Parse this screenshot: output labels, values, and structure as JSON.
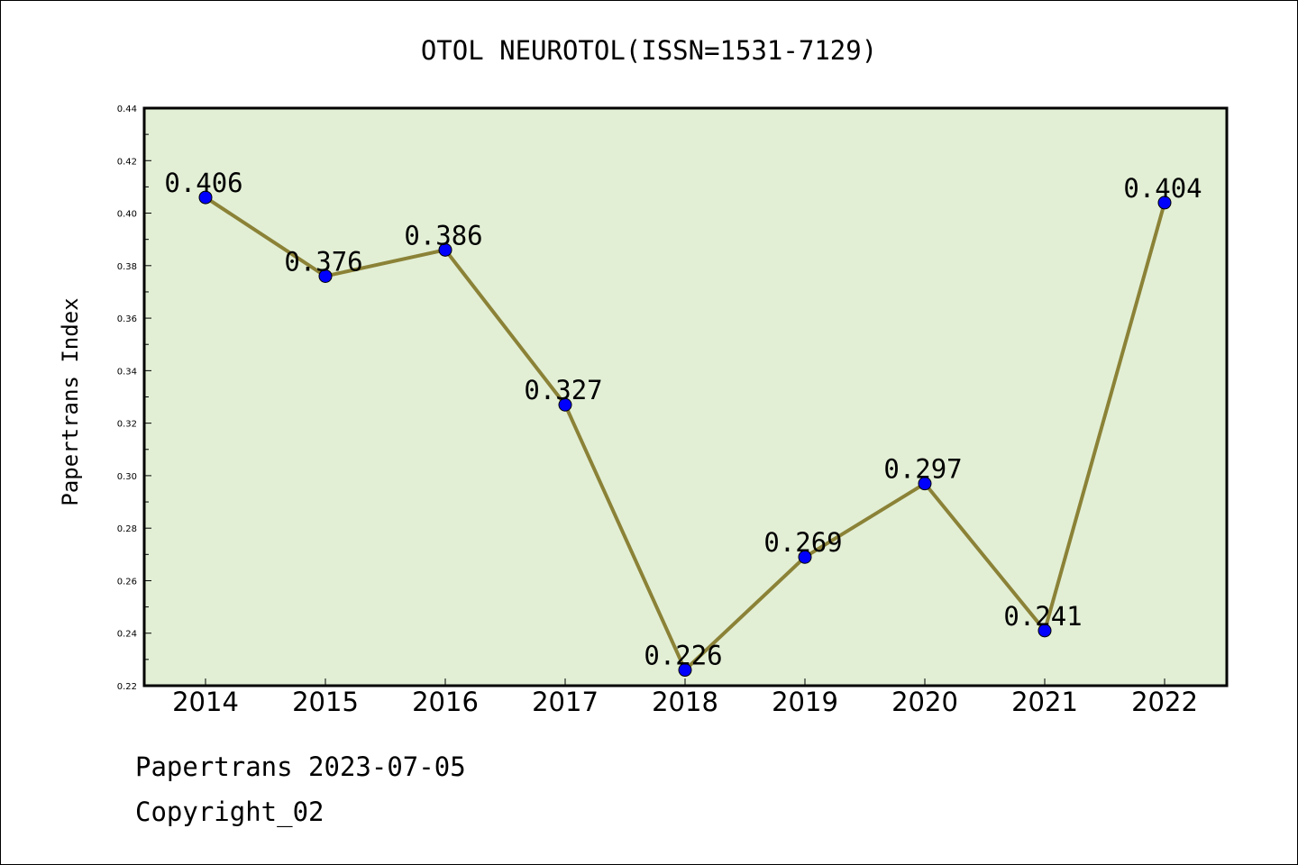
{
  "chart_data": {
    "type": "line",
    "title": "OTOL NEUROTOL(ISSN=1531-7129)",
    "xlabel": "",
    "ylabel": "Papertrans Index",
    "categories": [
      "2014",
      "2015",
      "2016",
      "2017",
      "2018",
      "2019",
      "2020",
      "2021",
      "2022"
    ],
    "values": [
      0.406,
      0.376,
      0.386,
      0.327,
      0.226,
      0.269,
      0.297,
      0.241,
      0.404
    ],
    "value_labels": [
      "0.406",
      "0.376",
      "0.386",
      "0.327",
      "0.226",
      "0.269",
      "0.297",
      "0.241",
      "0.404"
    ],
    "ylim": [
      0.22,
      0.44
    ],
    "yticks": [
      "0.22",
      "0.24",
      "0.26",
      "0.28",
      "0.30",
      "0.32",
      "0.34",
      "0.36",
      "0.38",
      "0.40",
      "0.42",
      "0.44"
    ],
    "grid": false,
    "colors": {
      "plot_background": "#e2efd5",
      "line": "#8b8237",
      "marker": "#0000ff"
    }
  },
  "footer": {
    "source": "Papertrans 2023-07-05",
    "copyright": "Copyright_02"
  }
}
